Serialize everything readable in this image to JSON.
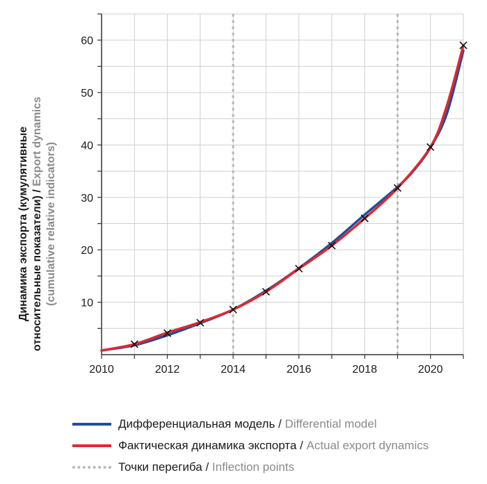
{
  "chart_data": {
    "type": "line",
    "ylabel_ru_line1": "Динамика экспорта (кумулятивные",
    "ylabel_ru_line2a": "относительные показатели) / ",
    "ylabel_en_line2b": "Export dynamics",
    "ylabel_en_line3": "(cumulative relative indicators)",
    "x_ticks": [
      "2010",
      "2012",
      "2014",
      "2016",
      "2018",
      "2020"
    ],
    "y_ticks": [
      "10",
      "20",
      "30",
      "40",
      "50",
      "60"
    ],
    "xlim": [
      2010,
      2021
    ],
    "ylim": [
      0,
      65
    ],
    "grid": true,
    "inflection_points": [
      2014,
      2019
    ],
    "series": [
      {
        "name_ru": "Дифференциальная модель",
        "name_en": "Differential model",
        "color": "#1f4e9c",
        "x": [
          2010,
          2011,
          2012,
          2013,
          2014,
          2015,
          2016,
          2017,
          2018,
          2019,
          2019.5,
          2020,
          2020.5,
          2021
        ],
        "y": [
          0.8,
          1.8,
          3.7,
          6.0,
          8.6,
          12.2,
          16.5,
          21.3,
          26.7,
          32.0,
          35.2,
          39.5,
          46.0,
          58.0
        ]
      },
      {
        "name_ru": "Фактическая динамика экспорта",
        "name_en": "Actual export dynamics",
        "color": "#e0282e",
        "x": [
          2010,
          2011,
          2012,
          2013,
          2014,
          2015,
          2016,
          2017,
          2018,
          2019,
          2020,
          2020.5,
          2021
        ],
        "y": [
          0.8,
          2.0,
          4.2,
          6.2,
          8.6,
          12.0,
          16.4,
          20.8,
          26.0,
          31.8,
          39.6,
          47.5,
          59.0
        ]
      }
    ],
    "markers": {
      "x": [
        2011,
        2012,
        2013,
        2014,
        2015,
        2016,
        2017,
        2018,
        2019,
        2020,
        2021
      ],
      "y": [
        2.0,
        4.1,
        6.1,
        8.6,
        12.0,
        16.4,
        20.8,
        26.0,
        31.8,
        39.6,
        59.0
      ]
    },
    "legend": [
      {
        "ru": "Дифференциальная модель",
        "sep": " / ",
        "en": "Differential model",
        "style": "blue"
      },
      {
        "ru": "Фактическая динамика экспорта",
        "sep": " / ",
        "en": "Actual export dynamics",
        "style": "red"
      },
      {
        "ru": "Точки перегиба",
        "sep": " / ",
        "en": "Inflection points",
        "style": "dots"
      }
    ]
  }
}
